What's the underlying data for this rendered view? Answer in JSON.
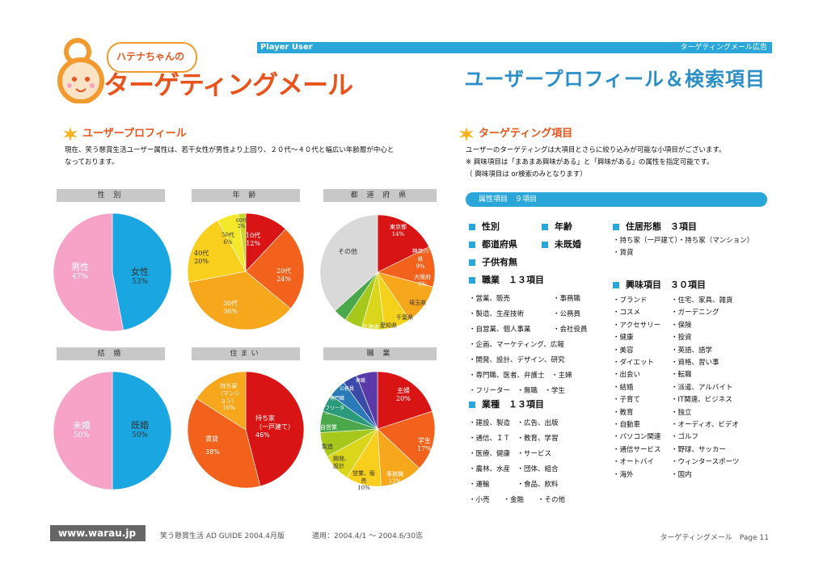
{
  "header": {
    "bar_left": "Player User",
    "bar_right": "ターゲティングメール広告",
    "title": "ユーザープロフィール＆検索項目",
    "logo_small": "ハテナちゃんの",
    "logo_main": "ターゲティングメール"
  },
  "profile": {
    "heading": "ユーザープロフィール",
    "desc1": "現在、笑う懸賞生活ユーザー属性は、若干女性が男性より上回り、２０代～４０代と幅広い年齢層が中心と",
    "desc2": "なっております。"
  },
  "charts": {
    "gender_label": "性 別",
    "age_label": "年 齢",
    "pref_label": "都 道 府 県",
    "marriage_label": "結 婚",
    "housing_label": "住まい",
    "job_label": "職 業"
  },
  "chart_data": [
    {
      "type": "pie",
      "title": "性 別",
      "labels": [
        "男性",
        "女性"
      ],
      "values": [
        47,
        53
      ],
      "colors": [
        "#1aa6e0",
        "#f7a3c8"
      ]
    },
    {
      "type": "pie",
      "title": "年 齢",
      "labels": [
        "10代",
        "20代",
        "30代",
        "40代",
        "50代",
        "60代"
      ],
      "values": [
        12,
        24,
        36,
        20,
        6,
        2
      ],
      "colors": [
        "#d91414",
        "#f2621c",
        "#f7a71c",
        "#f7cf1c",
        "#f4e82a",
        "#c9d62a"
      ]
    },
    {
      "type": "pie",
      "title": "都 道 府 県",
      "labels": [
        "東京都",
        "神奈川県",
        "大阪府",
        "埼玉県",
        "千葉県",
        "愛知県",
        "北海道",
        "その他"
      ],
      "values": [
        14,
        9,
        9,
        6,
        5,
        4,
        3,
        29
      ],
      "colors": [
        "#d91414",
        "#f2621c",
        "#f7a71c",
        "#f4d21c",
        "#d9d61c",
        "#a6c81c",
        "#4aa84a",
        "#d9d9d9"
      ]
    },
    {
      "type": "pie",
      "title": "結 婚",
      "labels": [
        "未婚",
        "既婚"
      ],
      "values": [
        50,
        50
      ],
      "colors": [
        "#1aa6e0",
        "#f7a3c8"
      ]
    },
    {
      "type": "pie",
      "title": "住まい",
      "labels": [
        "持ち家（一戸建て）",
        "賃貸",
        "持ち家（マンション）"
      ],
      "values": [
        46,
        38,
        16
      ],
      "colors": [
        "#d91414",
        "#f2621c",
        "#f7a71c"
      ]
    },
    {
      "type": "pie",
      "title": "職 業",
      "labels": [
        "主婦",
        "学生",
        "事務職",
        "営業、販売",
        "開発、設計",
        "製造",
        "自営業",
        "フリーター",
        "専門職",
        "公務員",
        "無職"
      ],
      "values": [
        20,
        17,
        12,
        10,
        8,
        7,
        6,
        5,
        5,
        4,
        6
      ],
      "colors": [
        "#d91414",
        "#f2621c",
        "#f7a71c",
        "#f7cf1c",
        "#d9d61c",
        "#a6c81c",
        "#4aa84a",
        "#2a9a7a",
        "#2a7ab8",
        "#3a4aa8",
        "#5a3aa8"
      ]
    }
  ],
  "pie_text": {
    "male": "男性",
    "male_pct": "47%",
    "female": "女性",
    "female_pct": "53%",
    "a10": "10代",
    "a10p": "12%",
    "a20": "20代",
    "a20p": "24%",
    "a30": "30代",
    "a30p": "36%",
    "a40": "40代",
    "a40p": "20%",
    "a50": "50代",
    "a50p": "6%",
    "a60": "60代",
    "a60p": "2%",
    "tokyo": "東京都",
    "tokyo_p": "14%",
    "kanagawa": "神奈川県",
    "kanagawa_p": "9%",
    "osaka": "大阪府",
    "osaka_p": "9%",
    "saitama": "埼玉県",
    "chiba": "千葉県",
    "aichi": "愛知県",
    "hokkaido": "北海道",
    "other": "その他",
    "single": "未婚",
    "single_p": "50%",
    "married": "既婚",
    "married_p": "50%",
    "own_house": "持ち家",
    "own_house2": "（一戸建て）",
    "own_house_p": "46%",
    "rent": "賃貸",
    "rent_p": "38%",
    "own_mansion": "持ち家（マンション）",
    "own_mansion_p": "16%",
    "housewife": "主婦",
    "housewife_p": "20%",
    "student": "学生",
    "student_p": "17%",
    "office": "事務職",
    "office_p": "12%",
    "sales": "営業、販売",
    "sales_p": "10%",
    "dev": "開発、設計",
    "manu": "製造",
    "self": "自営業",
    "freeter": "フリーター",
    "pro": "専門職",
    "civil": "公務員",
    "none": "無職"
  },
  "targeting": {
    "heading": "ターゲティング項目",
    "desc1": "ユーザーのターゲティングは大項目とさらに絞り込みが可能な小項目がございます。",
    "desc2": "※ 興味項目は「まあまあ興味がある」と「興味がある」の属性を指定可能です。",
    "desc3": "（ 興味項目は or検索のみとなります）",
    "attr_bar": "属性項目　９項目",
    "gender": "性別",
    "age": "年齢",
    "pref": "都道府県",
    "marital": "未既婚",
    "children": "子供有無",
    "job_head": "職業　１３項目",
    "jobs": [
      "・営業、販売",
      "・事務職",
      "・製造、生産技術",
      "・公務員",
      "・自営業、個人事業",
      "・会社役員",
      "・企画、マーケティング、広報",
      "・開発、設計、デザイン、研究",
      "・専門職、医者、弁護士　・主婦",
      "・フリーター　・無職　・学生"
    ],
    "industry_head": "業種　１３項目",
    "industries": [
      "・建設、製造　・広告、出版",
      "・通信、ＩＴ　・教育、学習",
      "・医療、健康　・サービス",
      "・農林、水産　・団体、組合",
      "・運輸　　　　・食品、飲料",
      "・小売　　・金融　　・その他"
    ],
    "housing_head": "住居形態　３項目",
    "housing1": "・持ち家（一戸建て）・持ち家（マンション）",
    "housing2": "・賃貸",
    "interest_head": "興味項目　３０項目",
    "interests_l": [
      "・ブランド",
      "・コスメ",
      "・アクセサリー",
      "・健康",
      "・美容",
      "・ダイエット",
      "・出会い",
      "・結婚",
      "・子育て",
      "・教育",
      "・自動車",
      "・パソコン関連",
      "・通信サービス",
      "・オートバイ",
      "・海外"
    ],
    "interests_r": [
      "・住宅、家具、雑貨",
      "・ガーデニング",
      "・保険",
      "・投資",
      "・英語、語学",
      "・資格、習い事",
      "・転職",
      "・派遣、アルバイト",
      "・IT関連、ビジネス",
      "・独立",
      "・オーディオ、ビデオ",
      "・ゴルフ",
      "・野球、サッカー",
      "・ウィンタースポーツ",
      "・国内"
    ]
  },
  "footer": {
    "site": "www.warau.jp",
    "guide": "笑う懸賞生活 AD GUIDE 2004.4月版",
    "period": "適用：2004.4/1 ～ 2004.6/30迄",
    "right": "ターゲティングメール　Page 11"
  }
}
